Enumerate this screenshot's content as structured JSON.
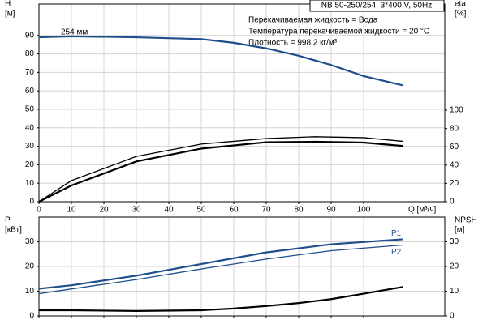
{
  "chart_data": [
    {
      "type": "line",
      "title": "NB 50-250/254, 3*400 V, 50Hz",
      "annotations": [
        "Перекачиваемая жидкость = Вода",
        "Температура перекачиваемой жидкости = 20 °C",
        "Плотность = 998.2 кг/м³"
      ],
      "curve_label": "254 мм",
      "xlabel": "Q [м³/ч]",
      "ylabel": [
        "H",
        "[м]"
      ],
      "y2label": [
        "eta",
        "[%]"
      ],
      "xlim": [
        0,
        125
      ],
      "ylim": [
        0,
        107
      ],
      "y2lim": [
        0,
        216
      ],
      "xticks": [
        0,
        10,
        20,
        30,
        40,
        50,
        60,
        70,
        80,
        90,
        100
      ],
      "yticks": [
        0,
        10,
        20,
        30,
        40,
        50,
        60,
        70,
        80,
        90
      ],
      "y2ticks": [
        0,
        20,
        40,
        60,
        80,
        100
      ],
      "grid": true,
      "show_xtick_labels": true,
      "series": [
        {
          "color": "#1f4e8c",
          "x": [
            0,
            10,
            30,
            50,
            60,
            70,
            80,
            90,
            100,
            112
          ],
          "values": [
            89,
            89.5,
            89,
            88,
            86,
            83,
            79,
            74,
            68,
            63
          ]
        },
        {
          "color": "#000000",
          "x": [
            0,
            10,
            30,
            50,
            70,
            85,
            100,
            112
          ],
          "values": [
            0,
            23,
            49.5,
            63,
            69,
            71,
            70,
            66
          ],
          "axis": "y2"
        },
        {
          "color": "#000000",
          "x": [
            0,
            10,
            30,
            50,
            70,
            85,
            100,
            112
          ],
          "values": [
            0,
            17.7,
            44,
            58,
            65,
            65.5,
            64.6,
            61
          ],
          "axis": "y2"
        }
      ]
    },
    {
      "type": "line",
      "ylabel": [
        "P",
        "[кВт]"
      ],
      "y2label": [
        "NPSH",
        "[м]"
      ],
      "xlim": [
        0,
        125
      ],
      "ylim": [
        0,
        40
      ],
      "y2lim": [
        0,
        40
      ],
      "xticks": [
        0,
        10,
        20,
        30,
        40,
        50,
        60,
        70,
        80,
        90,
        100
      ],
      "yticks": [
        0,
        10,
        20,
        30
      ],
      "y2ticks": [
        0,
        10,
        20,
        30
      ],
      "grid": true,
      "show_xtick_labels": false,
      "series": [
        {
          "name": "P1",
          "color": "#1f4e8c",
          "x": [
            0,
            10,
            30,
            50,
            70,
            90,
            112
          ],
          "values": [
            11,
            12.4,
            16.3,
            21,
            25.7,
            29,
            31
          ]
        },
        {
          "name": "P2",
          "color": "#1f4e8c",
          "x": [
            0,
            30,
            50,
            70,
            90,
            112
          ],
          "values": [
            9,
            14.7,
            19,
            23,
            26.4,
            28.7
          ]
        },
        {
          "color": "#000000",
          "x": [
            0,
            10,
            30,
            50,
            60,
            70,
            80,
            90,
            100,
            112
          ],
          "values": [
            2.3,
            2.3,
            2,
            2.3,
            3,
            4,
            5.2,
            6.8,
            9,
            11.7
          ],
          "axis": "y2"
        }
      ]
    }
  ]
}
